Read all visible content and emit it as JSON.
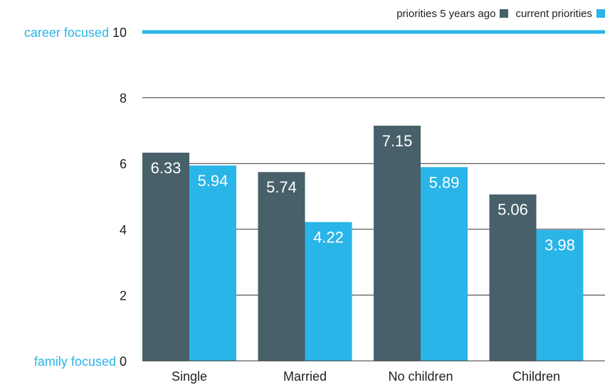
{
  "chart_data": {
    "type": "bar",
    "categories": [
      "Single",
      "Married",
      "No children",
      "Children"
    ],
    "series": [
      {
        "name": "priorities 5 years ago",
        "values": [
          6.33,
          5.74,
          7.15,
          5.06
        ],
        "color": "#47606a"
      },
      {
        "name": "current priorities",
        "values": [
          5.94,
          4.22,
          5.89,
          3.98
        ],
        "color": "#29b5e8"
      }
    ],
    "ylim": [
      0,
      10
    ],
    "yticks": [
      0,
      2,
      4,
      6,
      8,
      10
    ],
    "y_top_annotation": "career focused",
    "y_bottom_annotation": "family focused",
    "accent_color": "#29b5e8",
    "grid": true,
    "legend_position": "top-right"
  }
}
